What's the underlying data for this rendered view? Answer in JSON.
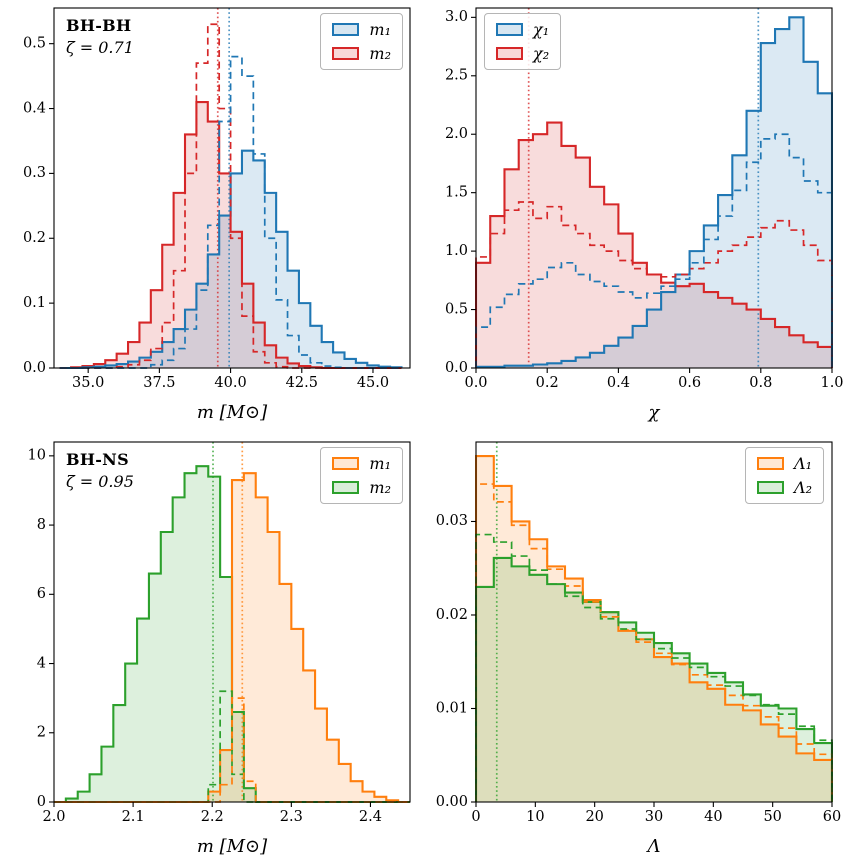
{
  "chart_data": [
    {
      "type": "histogram",
      "panel": "top-left",
      "annotation": {
        "line1": "BH-BH",
        "line2": "ζ = 0.71"
      },
      "xlabel": "m [M⊙]",
      "xlim": [
        33.8,
        46.3
      ],
      "ylim": [
        0,
        0.555
      ],
      "grid": false,
      "xticks": [
        {
          "v": 35.0,
          "label": "35.0"
        },
        {
          "v": 37.5,
          "label": "37.5"
        },
        {
          "v": 40.0,
          "label": "40.0"
        },
        {
          "v": 42.5,
          "label": "42.5"
        },
        {
          "v": 45.0,
          "label": "45.0"
        }
      ],
      "yticks": [
        {
          "v": 0.0,
          "label": "0.0"
        },
        {
          "v": 0.1,
          "label": "0.1"
        },
        {
          "v": 0.2,
          "label": "0.2"
        },
        {
          "v": 0.3,
          "label": "0.3"
        },
        {
          "v": 0.4,
          "label": "0.4"
        },
        {
          "v": 0.5,
          "label": "0.5"
        }
      ],
      "legend": {
        "position": "top-right",
        "entries": [
          {
            "label": "m₁",
            "color": "#1f77b4"
          },
          {
            "label": "m₂",
            "color": "#d62728"
          }
        ]
      },
      "vlines": [
        {
          "x": 39.55,
          "color": "#d62728"
        },
        {
          "x": 39.95,
          "color": "#1f77b4"
        }
      ],
      "bins": {
        "start": 34.0,
        "width": 0.4
      },
      "series": [
        {
          "name": "m2-solid",
          "color": "#d62728",
          "style": "solid",
          "fill": true,
          "values": [
            0,
            0.001,
            0.003,
            0.006,
            0.012,
            0.022,
            0.04,
            0.07,
            0.12,
            0.19,
            0.27,
            0.36,
            0.41,
            0.38,
            0.3,
            0.21,
            0.13,
            0.07,
            0.035,
            0.016,
            0.007,
            0.003,
            0.001,
            0,
            0,
            0,
            0,
            0,
            0,
            0
          ]
        },
        {
          "name": "m1-solid",
          "color": "#1f77b4",
          "style": "solid",
          "fill": true,
          "values": [
            0,
            0,
            0.001,
            0.002,
            0.004,
            0.006,
            0.01,
            0.016,
            0.025,
            0.04,
            0.06,
            0.09,
            0.13,
            0.175,
            0.235,
            0.3,
            0.335,
            0.32,
            0.27,
            0.21,
            0.15,
            0.1,
            0.065,
            0.04,
            0.024,
            0.014,
            0.008,
            0.004,
            0.002,
            0.001
          ]
        },
        {
          "name": "m2-dashed",
          "color": "#d62728",
          "style": "dashed",
          "fill": false,
          "values": [
            0,
            0,
            0,
            0,
            0,
            0.002,
            0.005,
            0.012,
            0.03,
            0.07,
            0.15,
            0.3,
            0.47,
            0.53,
            0.4,
            0.2,
            0.08,
            0.025,
            0.008,
            0.002,
            0,
            0,
            0,
            0,
            0,
            0,
            0,
            0,
            0,
            0
          ]
        },
        {
          "name": "m1-dashed",
          "color": "#1f77b4",
          "style": "dashed",
          "fill": false,
          "values": [
            0,
            0,
            0,
            0,
            0,
            0,
            0,
            0,
            0.005,
            0.012,
            0.03,
            0.06,
            0.12,
            0.22,
            0.38,
            0.48,
            0.45,
            0.33,
            0.2,
            0.105,
            0.05,
            0.02,
            0.008,
            0.003,
            0.001,
            0,
            0,
            0,
            0,
            0
          ]
        }
      ]
    },
    {
      "type": "histogram",
      "panel": "top-right",
      "xlabel": "χ",
      "xlim": [
        0.0,
        1.0
      ],
      "ylim": [
        0,
        3.08
      ],
      "grid": false,
      "xticks": [
        {
          "v": 0.0,
          "label": "0.0"
        },
        {
          "v": 0.2,
          "label": "0.2"
        },
        {
          "v": 0.4,
          "label": "0.4"
        },
        {
          "v": 0.6,
          "label": "0.6"
        },
        {
          "v": 0.8,
          "label": "0.8"
        },
        {
          "v": 1.0,
          "label": "1.0"
        }
      ],
      "yticks": [
        {
          "v": 0.0,
          "label": "0.0"
        },
        {
          "v": 0.5,
          "label": "0.5"
        },
        {
          "v": 1.0,
          "label": "1.0"
        },
        {
          "v": 1.5,
          "label": "1.5"
        },
        {
          "v": 2.0,
          "label": "2.0"
        },
        {
          "v": 2.5,
          "label": "2.5"
        },
        {
          "v": 3.0,
          "label": "3.0"
        }
      ],
      "legend": {
        "position": "top-left",
        "entries": [
          {
            "label": "χ₁",
            "color": "#1f77b4"
          },
          {
            "label": "χ₂",
            "color": "#d62728"
          }
        ]
      },
      "vlines": [
        {
          "x": 0.148,
          "color": "#d62728"
        },
        {
          "x": 0.793,
          "color": "#1f77b4"
        }
      ],
      "bins": {
        "start": 0.0,
        "width": 0.04
      },
      "series": [
        {
          "name": "chi2-solid",
          "color": "#d62728",
          "style": "solid",
          "fill": true,
          "values": [
            0.9,
            1.3,
            1.7,
            1.95,
            2.0,
            2.1,
            1.9,
            1.8,
            1.55,
            1.4,
            1.15,
            0.9,
            0.8,
            0.73,
            0.7,
            0.72,
            0.65,
            0.6,
            0.55,
            0.5,
            0.42,
            0.35,
            0.28,
            0.22,
            0.18
          ]
        },
        {
          "name": "chi1-solid",
          "color": "#1f77b4",
          "style": "solid",
          "fill": true,
          "values": [
            0.01,
            0.01,
            0.02,
            0.02,
            0.03,
            0.04,
            0.06,
            0.09,
            0.13,
            0.19,
            0.26,
            0.36,
            0.5,
            0.65,
            0.8,
            1.0,
            1.22,
            1.48,
            1.82,
            2.2,
            2.78,
            2.9,
            3.0,
            2.62,
            2.35
          ]
        },
        {
          "name": "chi2-dashed",
          "color": "#d62728",
          "style": "dashed",
          "fill": false,
          "values": [
            0.95,
            1.15,
            1.35,
            1.42,
            1.28,
            1.38,
            1.22,
            1.15,
            1.05,
            1.0,
            0.92,
            0.85,
            0.8,
            0.78,
            0.8,
            0.85,
            0.9,
            1.0,
            1.05,
            1.12,
            1.2,
            1.26,
            1.18,
            1.05,
            0.92
          ]
        },
        {
          "name": "chi1-dashed",
          "color": "#1f77b4",
          "style": "dashed",
          "fill": false,
          "values": [
            0.35,
            0.52,
            0.63,
            0.72,
            0.76,
            0.86,
            0.9,
            0.8,
            0.74,
            0.7,
            0.65,
            0.6,
            0.64,
            0.7,
            0.76,
            0.9,
            1.1,
            1.3,
            1.52,
            1.76,
            1.96,
            2.0,
            1.8,
            1.6,
            1.5
          ]
        }
      ]
    },
    {
      "type": "histogram",
      "panel": "bottom-left",
      "annotation": {
        "line1": "BH-NS",
        "line2": "ζ = 0.95"
      },
      "xlabel": "m [M⊙]",
      "xlim": [
        2.0,
        2.45
      ],
      "ylim": [
        0,
        10.4
      ],
      "grid": false,
      "xticks": [
        {
          "v": 2.0,
          "label": "2.0"
        },
        {
          "v": 2.1,
          "label": "2.1"
        },
        {
          "v": 2.2,
          "label": "2.2"
        },
        {
          "v": 2.3,
          "label": "2.3"
        },
        {
          "v": 2.4,
          "label": "2.4"
        }
      ],
      "yticks": [
        {
          "v": 0,
          "label": "0"
        },
        {
          "v": 2,
          "label": "2"
        },
        {
          "v": 4,
          "label": "4"
        },
        {
          "v": 6,
          "label": "6"
        },
        {
          "v": 8,
          "label": "8"
        },
        {
          "v": 10,
          "label": "10"
        }
      ],
      "legend": {
        "position": "top-right",
        "entries": [
          {
            "label": "m₁",
            "color": "#ff7f0e"
          },
          {
            "label": "m₂",
            "color": "#2ca02c"
          }
        ]
      },
      "vlines": [
        {
          "x": 2.201,
          "color": "#2ca02c"
        },
        {
          "x": 2.238,
          "color": "#ff7f0e"
        }
      ],
      "bins": {
        "start": 2.0,
        "width": 0.015
      },
      "series": [
        {
          "name": "m2-solid",
          "color": "#2ca02c",
          "style": "solid",
          "fill": true,
          "values": [
            0,
            0.1,
            0.3,
            0.8,
            1.6,
            2.8,
            4.0,
            5.3,
            6.6,
            7.8,
            8.8,
            9.5,
            9.7,
            9.4,
            6.5,
            2.6,
            0.4,
            0,
            0,
            0,
            0,
            0,
            0,
            0,
            0,
            0,
            0,
            0,
            0,
            0
          ]
        },
        {
          "name": "m1-solid",
          "color": "#ff7f0e",
          "style": "solid",
          "fill": true,
          "values": [
            0,
            0,
            0,
            0,
            0,
            0,
            0,
            0,
            0,
            0,
            0,
            0,
            0,
            0.3,
            1.5,
            9.3,
            9.5,
            8.8,
            7.8,
            6.3,
            5.0,
            3.8,
            2.7,
            1.8,
            1.1,
            0.6,
            0.3,
            0.15,
            0.05,
            0
          ]
        },
        {
          "name": "m2-dashed",
          "color": "#2ca02c",
          "style": "dashed",
          "fill": false,
          "values": [
            0,
            0,
            0,
            0,
            0,
            0,
            0,
            0,
            0,
            0,
            0,
            0,
            0,
            0.5,
            3.2,
            0.8,
            0,
            0,
            0,
            0,
            0,
            0,
            0,
            0,
            0,
            0,
            0,
            0,
            0,
            0
          ]
        },
        {
          "name": "m1-dashed",
          "color": "#ff7f0e",
          "style": "dashed",
          "fill": false,
          "values": [
            0,
            0,
            0,
            0,
            0,
            0,
            0,
            0,
            0,
            0,
            0,
            0,
            0,
            0,
            0.5,
            3.0,
            0.6,
            0,
            0,
            0,
            0,
            0,
            0,
            0,
            0,
            0,
            0,
            0,
            0,
            0
          ]
        }
      ]
    },
    {
      "type": "histogram",
      "panel": "bottom-right",
      "xlabel": "Λ",
      "xlim": [
        0,
        60
      ],
      "ylim": [
        0,
        0.0385
      ],
      "grid": false,
      "xticks": [
        {
          "v": 0,
          "label": "0"
        },
        {
          "v": 10,
          "label": "10"
        },
        {
          "v": 20,
          "label": "20"
        },
        {
          "v": 30,
          "label": "30"
        },
        {
          "v": 40,
          "label": "40"
        },
        {
          "v": 50,
          "label": "50"
        },
        {
          "v": 60,
          "label": "60"
        }
      ],
      "yticks": [
        {
          "v": 0.0,
          "label": "0.00"
        },
        {
          "v": 0.01,
          "label": "0.01"
        },
        {
          "v": 0.02,
          "label": "0.02"
        },
        {
          "v": 0.03,
          "label": "0.03"
        }
      ],
      "legend": {
        "position": "top-right",
        "entries": [
          {
            "label": "Λ₁",
            "color": "#ff7f0e"
          },
          {
            "label": "Λ₂",
            "color": "#2ca02c"
          }
        ]
      },
      "vlines": [
        {
          "x": 3.5,
          "color": "#2ca02c"
        }
      ],
      "bins": {
        "start": 0,
        "width": 3
      },
      "series": [
        {
          "name": "lambda1-solid",
          "color": "#ff7f0e",
          "style": "solid",
          "fill": true,
          "values": [
            0.037,
            0.0338,
            0.03,
            0.0281,
            0.0252,
            0.0239,
            0.0216,
            0.0203,
            0.0183,
            0.0174,
            0.0155,
            0.0148,
            0.0128,
            0.0121,
            0.0104,
            0.0098,
            0.0083,
            0.007,
            0.0052,
            0.0045
          ]
        },
        {
          "name": "lambda2-solid",
          "color": "#2ca02c",
          "style": "solid",
          "fill": true,
          "values": [
            0.023,
            0.0261,
            0.0252,
            0.0243,
            0.0233,
            0.0224,
            0.0214,
            0.0203,
            0.0192,
            0.0181,
            0.017,
            0.0159,
            0.0148,
            0.0138,
            0.0128,
            0.0115,
            0.0103,
            0.01,
            0.0078,
            0.0063
          ]
        },
        {
          "name": "lambda1-dashed",
          "color": "#ff7f0e",
          "style": "dashed",
          "fill": false,
          "values": [
            0.034,
            0.0321,
            0.0296,
            0.0271,
            0.0249,
            0.0231,
            0.0214,
            0.0198,
            0.0184,
            0.0171,
            0.0159,
            0.0147,
            0.0136,
            0.0125,
            0.0114,
            0.0103,
            0.0091,
            0.0079,
            0.0062,
            0.0051
          ]
        },
        {
          "name": "lambda2-dashed",
          "color": "#2ca02c",
          "style": "dashed",
          "fill": false,
          "values": [
            0.0286,
            0.0278,
            0.0263,
            0.0248,
            0.0233,
            0.022,
            0.0208,
            0.0196,
            0.0185,
            0.0174,
            0.0164,
            0.0154,
            0.0144,
            0.0134,
            0.0124,
            0.0114,
            0.0104,
            0.0094,
            0.0081,
            0.0066
          ]
        }
      ]
    }
  ]
}
